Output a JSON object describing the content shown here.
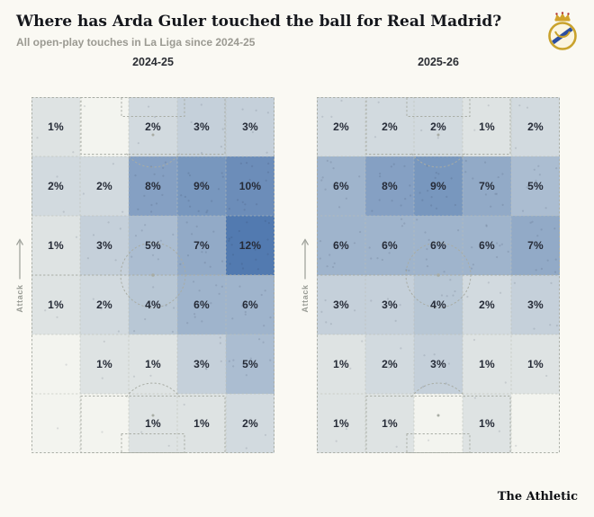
{
  "header": {
    "title": "Where has Arda Guler touched the ball for Real Madrid?",
    "subtitle": "All open-play touches in La Liga since 2024-25"
  },
  "crest": {
    "alt": "Real Madrid crest"
  },
  "attack_label": "Attack",
  "footer": {
    "brand": "The Athletic"
  },
  "colors": {
    "background": "#faf9f3",
    "heat_low": "#ebede8",
    "heat_high": "#527ab0",
    "empty_cell": "#f3f4ef",
    "pitch_line": "#a8aca4",
    "grid_line": "#bcbfb6",
    "label": "#262b37",
    "speckle": "rgba(40,50,70,0.13)"
  },
  "chart_data": [
    {
      "type": "heatmap",
      "title": "2024-25",
      "unit": "%",
      "columns": 5,
      "rows": 6,
      "orientation": "attack-up",
      "note": "share of open-play touches per pitch zone, rows top (attacking end) to bottom (own goal), null = no label shown",
      "grid": [
        [
          1,
          null,
          2,
          3,
          3
        ],
        [
          2,
          2,
          8,
          9,
          10
        ],
        [
          1,
          3,
          5,
          7,
          12
        ],
        [
          1,
          2,
          4,
          6,
          6
        ],
        [
          null,
          1,
          1,
          3,
          5
        ],
        [
          null,
          null,
          1,
          1,
          2
        ]
      ]
    },
    {
      "type": "heatmap",
      "title": "2025-26",
      "unit": "%",
      "columns": 5,
      "rows": 6,
      "orientation": "attack-up",
      "note": "share of open-play touches per pitch zone, rows top (attacking end) to bottom (own goal), null = no label shown",
      "grid": [
        [
          2,
          2,
          2,
          1,
          2
        ],
        [
          6,
          8,
          9,
          7,
          5
        ],
        [
          6,
          6,
          6,
          6,
          7
        ],
        [
          3,
          3,
          4,
          2,
          3
        ],
        [
          1,
          2,
          3,
          1,
          1
        ],
        [
          1,
          1,
          null,
          1,
          null
        ]
      ]
    }
  ]
}
